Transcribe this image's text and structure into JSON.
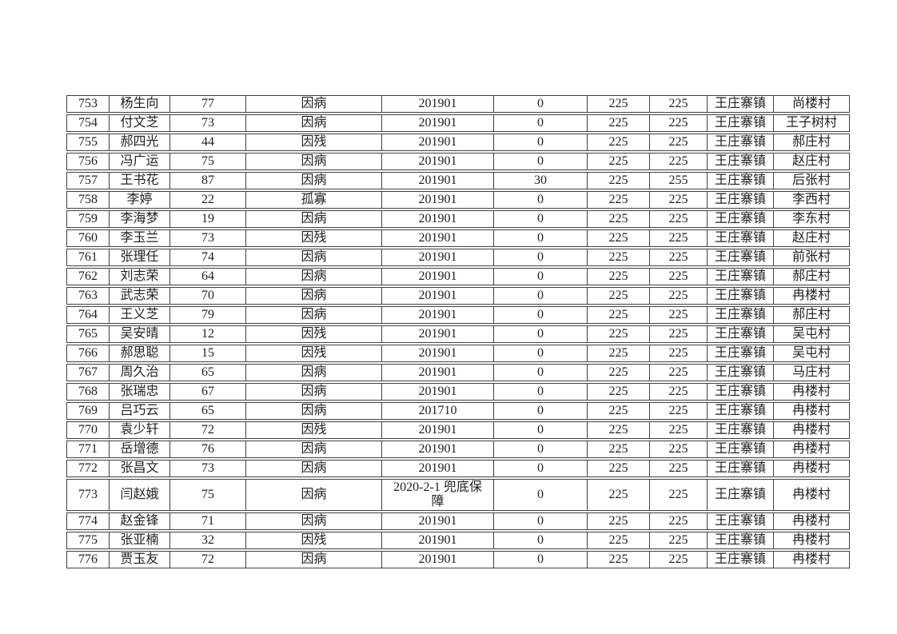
{
  "colors": {
    "background": "#ffffff",
    "table_border": "#404040",
    "text": "#1f1f1f"
  },
  "table": {
    "fields": [
      "seq",
      "name",
      "age",
      "reason",
      "date",
      "amount1",
      "amount2",
      "amount3",
      "town",
      "village"
    ],
    "rows": [
      {
        "seq": "753",
        "name": "杨生向",
        "age": "77",
        "reason": "因病",
        "date": "201901",
        "amount1": "0",
        "amount2": "225",
        "amount3": "225",
        "town": "王庄寨镇",
        "village": "尚楼村"
      },
      {
        "seq": "754",
        "name": "付文芝",
        "age": "73",
        "reason": "因病",
        "date": "201901",
        "amount1": "0",
        "amount2": "225",
        "amount3": "225",
        "town": "王庄寨镇",
        "village": "王子树村"
      },
      {
        "seq": "755",
        "name": "郝四光",
        "age": "44",
        "reason": "因残",
        "date": "201901",
        "amount1": "0",
        "amount2": "225",
        "amount3": "225",
        "town": "王庄寨镇",
        "village": "郝庄村"
      },
      {
        "seq": "756",
        "name": "冯广运",
        "age": "75",
        "reason": "因病",
        "date": "201901",
        "amount1": "0",
        "amount2": "225",
        "amount3": "225",
        "town": "王庄寨镇",
        "village": "赵庄村"
      },
      {
        "seq": "757",
        "name": "王书花",
        "age": "87",
        "reason": "因病",
        "date": "201901",
        "amount1": "30",
        "amount2": "225",
        "amount3": "255",
        "town": "王庄寨镇",
        "village": "后张村"
      },
      {
        "seq": "758",
        "name": "李婷",
        "age": "22",
        "reason": "孤寡",
        "date": "201901",
        "amount1": "0",
        "amount2": "225",
        "amount3": "225",
        "town": "王庄寨镇",
        "village": "李西村"
      },
      {
        "seq": "759",
        "name": "李海梦",
        "age": "19",
        "reason": "因病",
        "date": "201901",
        "amount1": "0",
        "amount2": "225",
        "amount3": "225",
        "town": "王庄寨镇",
        "village": "李东村"
      },
      {
        "seq": "760",
        "name": "李玉兰",
        "age": "73",
        "reason": "因残",
        "date": "201901",
        "amount1": "0",
        "amount2": "225",
        "amount3": "225",
        "town": "王庄寨镇",
        "village": "赵庄村"
      },
      {
        "seq": "761",
        "name": "张理任",
        "age": "74",
        "reason": "因病",
        "date": "201901",
        "amount1": "0",
        "amount2": "225",
        "amount3": "225",
        "town": "王庄寨镇",
        "village": "前张村"
      },
      {
        "seq": "762",
        "name": "刘志荣",
        "age": "64",
        "reason": "因病",
        "date": "201901",
        "amount1": "0",
        "amount2": "225",
        "amount3": "225",
        "town": "王庄寨镇",
        "village": "郝庄村"
      },
      {
        "seq": "763",
        "name": "武志荣",
        "age": "70",
        "reason": "因病",
        "date": "201901",
        "amount1": "0",
        "amount2": "225",
        "amount3": "225",
        "town": "王庄寨镇",
        "village": "冉楼村"
      },
      {
        "seq": "764",
        "name": "王义芝",
        "age": "79",
        "reason": "因病",
        "date": "201901",
        "amount1": "0",
        "amount2": "225",
        "amount3": "225",
        "town": "王庄寨镇",
        "village": "郝庄村"
      },
      {
        "seq": "765",
        "name": "吴安晴",
        "age": "12",
        "reason": "因残",
        "date": "201901",
        "amount1": "0",
        "amount2": "225",
        "amount3": "225",
        "town": "王庄寨镇",
        "village": "吴屯村"
      },
      {
        "seq": "766",
        "name": "郝思聪",
        "age": "15",
        "reason": "因残",
        "date": "201901",
        "amount1": "0",
        "amount2": "225",
        "amount3": "225",
        "town": "王庄寨镇",
        "village": "吴屯村"
      },
      {
        "seq": "767",
        "name": "周久治",
        "age": "65",
        "reason": "因病",
        "date": "201901",
        "amount1": "0",
        "amount2": "225",
        "amount3": "225",
        "town": "王庄寨镇",
        "village": "马庄村"
      },
      {
        "seq": "768",
        "name": "张瑞忠",
        "age": "67",
        "reason": "因病",
        "date": "201901",
        "amount1": "0",
        "amount2": "225",
        "amount3": "225",
        "town": "王庄寨镇",
        "village": "冉楼村"
      },
      {
        "seq": "769",
        "name": "吕巧云",
        "age": "65",
        "reason": "因病",
        "date": "201710",
        "amount1": "0",
        "amount2": "225",
        "amount3": "225",
        "town": "王庄寨镇",
        "village": "冉楼村"
      },
      {
        "seq": "770",
        "name": "袁少轩",
        "age": "72",
        "reason": "因残",
        "date": "201901",
        "amount1": "0",
        "amount2": "225",
        "amount3": "225",
        "town": "王庄寨镇",
        "village": "冉楼村"
      },
      {
        "seq": "771",
        "name": "岳增德",
        "age": "76",
        "reason": "因病",
        "date": "201901",
        "amount1": "0",
        "amount2": "225",
        "amount3": "225",
        "town": "王庄寨镇",
        "village": "冉楼村"
      },
      {
        "seq": "772",
        "name": "张昌文",
        "age": "73",
        "reason": "因病",
        "date": "201901",
        "amount1": "0",
        "amount2": "225",
        "amount3": "225",
        "town": "王庄寨镇",
        "village": "冉楼村"
      },
      {
        "seq": "773",
        "name": "闫赵娥",
        "age": "75",
        "reason": "因病",
        "date": "2020-2-1 兜底保障",
        "amount1": "0",
        "amount2": "225",
        "amount3": "225",
        "town": "王庄寨镇",
        "village": "冉楼村"
      },
      {
        "seq": "774",
        "name": "赵金锋",
        "age": "71",
        "reason": "因病",
        "date": "201901",
        "amount1": "0",
        "amount2": "225",
        "amount3": "225",
        "town": "王庄寨镇",
        "village": "冉楼村"
      },
      {
        "seq": "775",
        "name": "张亚楠",
        "age": "32",
        "reason": "因残",
        "date": "201901",
        "amount1": "0",
        "amount2": "225",
        "amount3": "225",
        "town": "王庄寨镇",
        "village": "冉楼村"
      },
      {
        "seq": "776",
        "name": "贾玉友",
        "age": "72",
        "reason": "因病",
        "date": "201901",
        "amount1": "0",
        "amount2": "225",
        "amount3": "225",
        "town": "王庄寨镇",
        "village": "冉楼村"
      }
    ]
  }
}
